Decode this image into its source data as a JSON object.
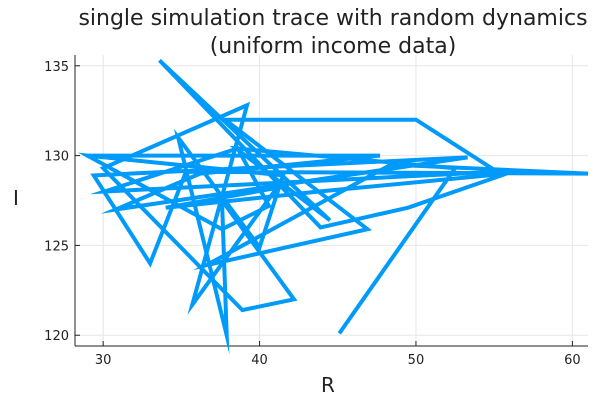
{
  "chart_data": {
    "type": "line",
    "title_line1": "single simulation trace with random dynamics",
    "title_line2": "(uniform income data)",
    "xlabel": "R",
    "ylabel": "I",
    "xlim": [
      28.2,
      61.0
    ],
    "ylim": [
      119.4,
      135.6
    ],
    "xticks": [
      30,
      40,
      50,
      60
    ],
    "yticks": [
      120,
      125,
      130,
      135
    ],
    "grid": true,
    "legend": "none",
    "series": [
      {
        "color": "#009AFA",
        "x": [
          45.1,
          52.5,
          38.5,
          44.5,
          33.6,
          43.9,
          49.5,
          55.8,
          43.8,
          34.0,
          41.1,
          35.7,
          39.2,
          30.0,
          38.9,
          42.2,
          37.6,
          37.9,
          34.8,
          40.0,
          41.5,
          29.0,
          37.6,
          40.6,
          38.6,
          30.1,
          55.2,
          50.0,
          37.8,
          46.9,
          36.6,
          48.4,
          61.0,
          35.3,
          33.0,
          29.4,
          53.3,
          30.8,
          36.2,
          47.7,
          28.9
        ],
        "y": [
          120.1,
          129.3,
          130.4,
          126.4,
          135.3,
          126.0,
          127.1,
          129.0,
          128.0,
          127.1,
          128.2,
          121.7,
          132.8,
          129.3,
          121.4,
          122.0,
          127.5,
          120.0,
          131.0,
          124.9,
          128.9,
          130.0,
          125.9,
          127.2,
          130.4,
          128.0,
          129.1,
          132.0,
          132.0,
          125.9,
          123.9,
          129.5,
          129.0,
          129.1,
          124.0,
          128.9,
          129.9,
          127.0,
          129.0,
          130.0,
          130.0
        ]
      }
    ]
  }
}
